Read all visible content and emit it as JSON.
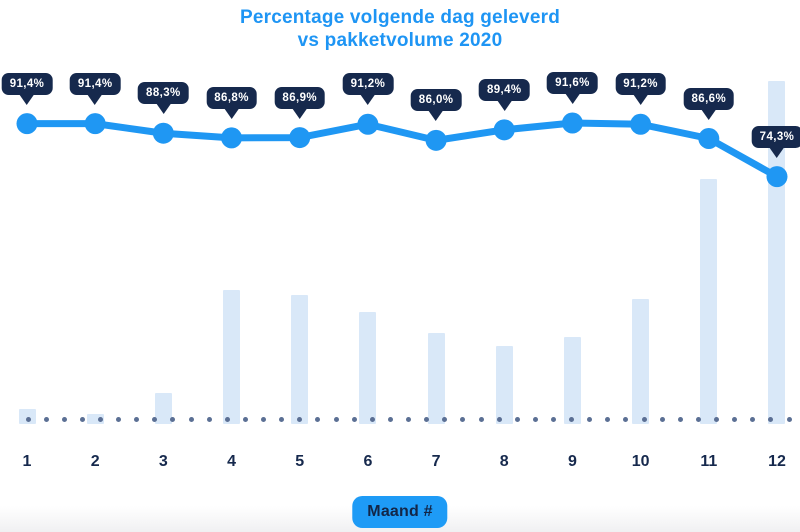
{
  "title": {
    "line1": "Percentage volgende dag geleverd",
    "line2": "vs pakketvolume 2020"
  },
  "x_axis": {
    "badge_label": "Maand #"
  },
  "colors": {
    "title_color": "#1e95f4",
    "line_color": "#1f97f3",
    "marker_color": "#1f97f3",
    "tooltip_navy": "#16294d",
    "axis_label_navy": "#16294d",
    "bar_fill": "#d9e8f8",
    "dot_color": "#5b6f94",
    "badge_bg": "#1e9bf6",
    "badge_text": "#132647",
    "background": "#ffffff"
  },
  "chart_data": {
    "type": "line+bar",
    "title": "Percentage volgende dag geleverd vs pakketvolume 2020",
    "xlabel": "Maand #",
    "ylabel": "",
    "categories": [
      "1",
      "2",
      "3",
      "4",
      "5",
      "6",
      "7",
      "8",
      "9",
      "10",
      "11",
      "12"
    ],
    "grid": false,
    "legend_position": "none",
    "value_labels_style": "speech-bubble tooltip above each line point",
    "baseline_style": "horizontal dotted line of slate dots at x-axis",
    "series": [
      {
        "name": "Percentage volgende dag geleverd",
        "type": "line",
        "unit": "%",
        "values": [
          91.4,
          91.4,
          88.3,
          86.8,
          86.9,
          91.2,
          86.0,
          89.4,
          91.6,
          91.2,
          86.6,
          74.3
        ],
        "labels": [
          "91,4%",
          "91,4%",
          "88,3%",
          "86,8%",
          "86,9%",
          "91,2%",
          "86,0%",
          "89,4%",
          "91,6%",
          "91,2%",
          "86,6%",
          "74,3%"
        ],
        "visible_range_hint": [
          74,
          92
        ]
      },
      {
        "name": "Pakketvolume 2020",
        "type": "bar",
        "unit": "relative volume index (axis unlabeled, December = 100)",
        "values": [
          4.4,
          2.9,
          9.0,
          39.1,
          37.6,
          32.7,
          26.5,
          22.7,
          25.4,
          36.4,
          71.4,
          100
        ]
      }
    ]
  }
}
